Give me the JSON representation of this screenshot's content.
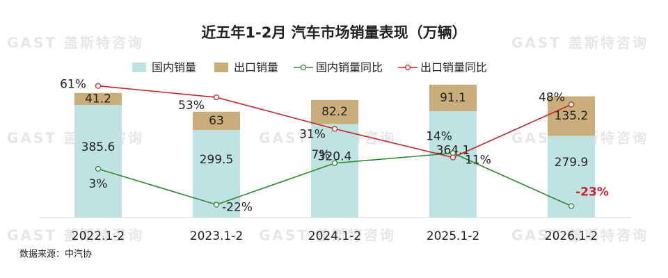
{
  "chart_data": {
    "type": "bar-line",
    "title": "近五年1-2月 汽车市场销量表现（万辆）",
    "watermark": "GAST 盖斯特咨询",
    "source": "数据来源：中汽协",
    "categories": [
      "2022.1-2",
      "2023.1-2",
      "2024.1-2",
      "2025.1-2",
      "2026.1-2"
    ],
    "series": [
      {
        "name": "国内销量",
        "type": "bar",
        "color": "#bfe3e3",
        "values": [
          385.6,
          299.5,
          320.4,
          364.1,
          279.9
        ]
      },
      {
        "name": "出口销量",
        "type": "bar",
        "color": "#c9ae7c",
        "values": [
          41.2,
          63,
          82.2,
          91.1,
          135.2
        ]
      },
      {
        "name": "国内销量同比",
        "type": "line",
        "axis": "y2",
        "color": "#2b8a2b",
        "values": [
          3,
          -22,
          7,
          14,
          -23
        ],
        "value_labels": [
          "3%",
          "-22%",
          "7%",
          "14%",
          "-23%"
        ]
      },
      {
        "name": "出口销量同比",
        "type": "line",
        "axis": "y2",
        "color": "#c3262b",
        "values": [
          61,
          53,
          31,
          11,
          48
        ],
        "value_labels": [
          "61%",
          "53%",
          "31%",
          "11%",
          "48%"
        ]
      }
    ],
    "stacked": true,
    "ylim": [
      0,
      500
    ],
    "y2lim": [
      -31,
      71
    ]
  }
}
